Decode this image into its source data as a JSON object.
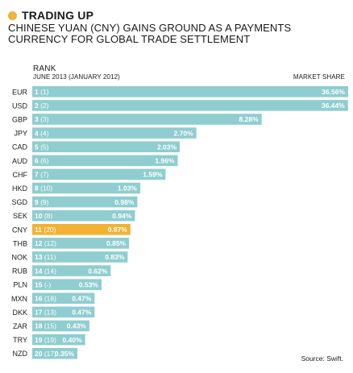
{
  "header": {
    "title": "TRADING UP",
    "subtitle": "CHINESE YUAN (CNY) GAINS GROUND AS A PAYMENTS CURRENCY FOR GLOBAL TRADE SETTLEMENT",
    "rank_label": "RANK",
    "rank_sublabel": "JUNE 2013  (JANUARY 2012)",
    "market_share_label": "MARKET SHARE",
    "source": "Source: Swift."
  },
  "colors": {
    "bar": "#8fcdd0",
    "highlight": "#f2b233",
    "accent_dot": "#f2b233"
  },
  "chart_data": {
    "type": "bar",
    "orientation": "horizontal",
    "title": "TRADING UP",
    "subtitle": "CHINESE YUAN (CNY) GAINS GROUND AS A PAYMENTS CURRENCY FOR GLOBAL TRADE SETTLEMENT",
    "xlabel": "MARKET SHARE",
    "ylabel": "RANK",
    "unit": "%",
    "categories": [
      "EUR",
      "USD",
      "GBP",
      "JPY",
      "CAD",
      "AUD",
      "CHF",
      "HKD",
      "SGD",
      "SEK",
      "CNY",
      "THB",
      "NOK",
      "RUB",
      "PLN",
      "MXN",
      "DKK",
      "ZAR",
      "TRY",
      "NZD"
    ],
    "rank_june_2013": [
      "1",
      "2",
      "3",
      "4",
      "5",
      "6",
      "7",
      "8",
      "9",
      "10",
      "11",
      "12",
      "13",
      "14",
      "15",
      "16",
      "17",
      "18",
      "19",
      "20"
    ],
    "rank_january_2012": [
      "(1)",
      "(2)",
      "(3)",
      "(4)",
      "(5)",
      "(6)",
      "(7)",
      "(10)",
      "(9)",
      "(8)",
      "(20)",
      "(12)",
      "(11)",
      "(14)",
      "(-)",
      "(18)",
      "(13)",
      "(15)",
      "(19)",
      "(17)"
    ],
    "values": [
      36.56,
      36.44,
      8.28,
      2.7,
      2.03,
      1.96,
      1.59,
      1.03,
      0.98,
      0.94,
      0.87,
      0.85,
      0.83,
      0.62,
      0.53,
      0.47,
      0.47,
      0.43,
      0.4,
      0.35
    ],
    "value_labels": [
      "36.56%",
      "36.44%",
      "8.28%",
      "2.70%",
      "2.03%",
      "1.96%",
      "1.59%",
      "1.03%",
      "0.98%",
      "0.94%",
      "0.87%",
      "0.85%",
      "0.83%",
      "0.62%",
      "0.53%",
      "0.47%",
      "0.47%",
      "0.43%",
      "0.40%",
      "0.35%"
    ],
    "highlight": "CNY"
  }
}
